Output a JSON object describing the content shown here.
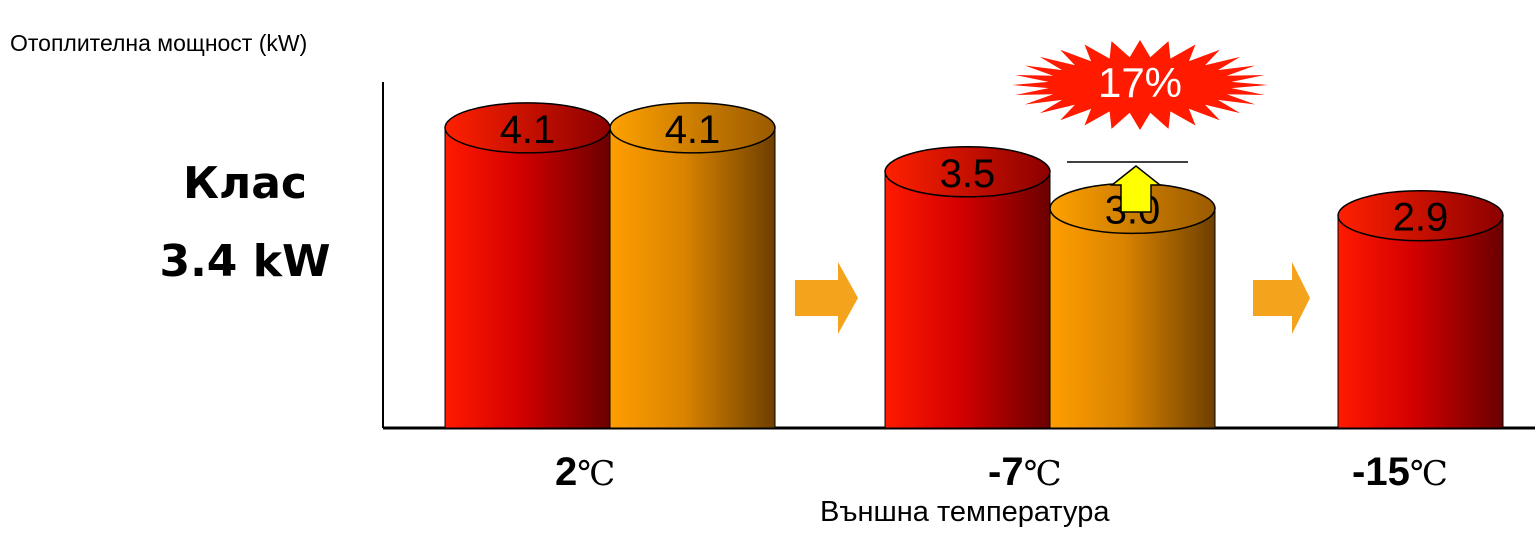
{
  "y_axis_label": "Отоплителна мощност (kW)",
  "class_label": {
    "line1": "Клас",
    "line2": "3.4 kW"
  },
  "x_axis_title": "Външна температура",
  "temperature_unit": "℃",
  "callout": {
    "text": "17%",
    "color": "#ff1a00",
    "text_color": "#ffffff"
  },
  "colors": {
    "series_a": "#e80000",
    "series_b": "#ef8f00",
    "arrow": "#f4a31c",
    "up_arrow": "#ffff00"
  },
  "chart_data": {
    "type": "bar",
    "title": "",
    "ylabel": "Отоплителна мощност (kW)",
    "xlabel": "Външна температура",
    "categories": [
      "2",
      "-7",
      "-15"
    ],
    "series": [
      {
        "values": [
          4.1,
          3.5,
          2.9
        ],
        "color": "#e80000"
      },
      {
        "values": [
          4.1,
          3.0,
          null
        ],
        "color": "#ef8f00"
      }
    ],
    "data_labels": [
      [
        "4.1",
        "3.5",
        "2.9"
      ],
      [
        "4.1",
        "3.0",
        ""
      ]
    ],
    "ylim": [
      0,
      4.6
    ],
    "grid": false,
    "legend": "none"
  }
}
